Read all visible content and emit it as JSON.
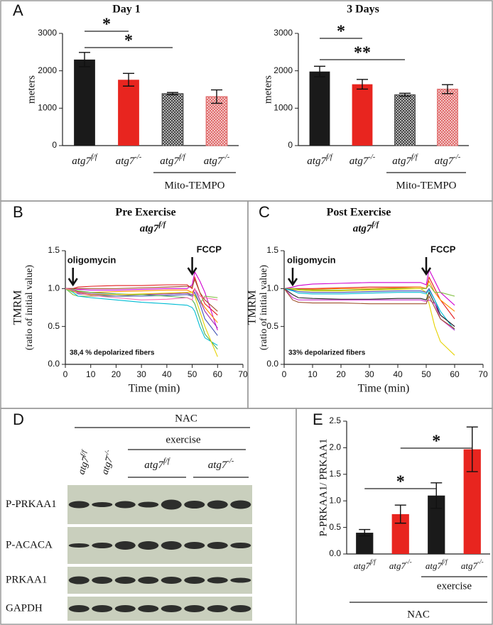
{
  "chart_data": [
    {
      "type": "bar",
      "panel": "A",
      "title": "Day 1",
      "ylabel": "meters",
      "categories": [
        "atg7f/f",
        "atg7-/-",
        "atg7f/f",
        "atg7-/-"
      ],
      "values": [
        2300,
        1760,
        1390,
        1310
      ],
      "errors": [
        190,
        170,
        30,
        180
      ],
      "colors": [
        "#1a1a1a",
        "#e8251f",
        "#444444",
        "#e06a6a"
      ],
      "hatched": [
        false,
        false,
        true,
        true
      ],
      "ylim": [
        0,
        3000
      ],
      "yticks": [
        0,
        1000,
        2000,
        3000
      ],
      "significance": [
        {
          "label": "*",
          "from": 0,
          "to": 1
        },
        {
          "label": "*",
          "from": 0,
          "to": 2
        }
      ],
      "group_labels": [
        {
          "text": "Mito-TEMPO",
          "from": 2,
          "to": 3
        }
      ]
    },
    {
      "type": "bar",
      "title": "3 Days",
      "ylabel": "meters",
      "categories": [
        "atg7f/f",
        "atg7-/-",
        "atg7f/f",
        "atg7-/-"
      ],
      "values": [
        1980,
        1640,
        1360,
        1510
      ],
      "errors": [
        140,
        130,
        40,
        120
      ],
      "colors": [
        "#1a1a1a",
        "#e8251f",
        "#444444",
        "#e06a6a"
      ],
      "hatched": [
        false,
        false,
        true,
        true
      ],
      "ylim": [
        0,
        3000
      ],
      "yticks": [
        0,
        1000,
        2000,
        3000
      ],
      "significance": [
        {
          "label": "*",
          "from": 0,
          "to": 1
        },
        {
          "label": "**",
          "from": 0,
          "to": 2
        }
      ],
      "group_labels": [
        {
          "text": "Mito-TEMPO",
          "from": 2,
          "to": 3
        }
      ]
    },
    {
      "type": "line",
      "panel": "B",
      "title": "Pre Exercise",
      "subtitle": "atg7f/f",
      "ylabel": [
        "TMRM",
        "(ratio of initial value)"
      ],
      "xlabel": "Time (min)",
      "annotation": "38,4 % depolarized fibers",
      "arrows": [
        {
          "label": "oligomycin",
          "x": 3
        },
        {
          "label": "FCCP",
          "x": 50
        }
      ],
      "xlim": [
        0,
        70
      ],
      "xticks": [
        0,
        10,
        20,
        30,
        40,
        50,
        60,
        70
      ],
      "ylim": [
        0,
        1.5
      ],
      "yticks": [
        {
          "value": 0,
          "label": "0.0"
        },
        0.5,
        {
          "value": 1,
          "label": "1.0"
        },
        1.5
      ],
      "x": [
        0,
        3,
        5,
        10,
        20,
        30,
        40,
        48,
        50,
        51,
        53,
        55,
        60
      ],
      "series": [
        {
          "color": "#e31a1c",
          "values": [
            1,
            1.0,
            1.02,
            1.03,
            1.04,
            1.04,
            1.05,
            1.05,
            1.0,
            1.15,
            0.95,
            0.8,
            0.65
          ]
        },
        {
          "color": "#d000d0",
          "values": [
            1,
            1.0,
            0.99,
            0.98,
            0.98,
            0.99,
            1.0,
            1.0,
            1.05,
            1.22,
            1.1,
            0.95,
            0.45
          ]
        },
        {
          "color": "#ff8c00",
          "values": [
            1,
            0.98,
            0.96,
            0.95,
            0.96,
            0.97,
            0.98,
            0.98,
            0.95,
            1.0,
            0.85,
            0.75,
            0.55
          ]
        },
        {
          "color": "#7fbf3f",
          "values": [
            1,
            0.92,
            0.9,
            0.9,
            0.9,
            0.92,
            0.93,
            0.94,
            0.9,
            0.92,
            0.8,
            0.9,
            0.88
          ]
        },
        {
          "color": "#00bcd4",
          "values": [
            1,
            0.95,
            0.9,
            0.88,
            0.85,
            0.82,
            0.8,
            0.78,
            0.75,
            0.7,
            0.5,
            0.35,
            0.25
          ]
        },
        {
          "color": "#3f51b5",
          "values": [
            1,
            0.97,
            0.93,
            0.92,
            0.9,
            0.9,
            0.91,
            0.92,
            0.9,
            0.95,
            0.8,
            0.6,
            0.38
          ]
        },
        {
          "color": "#9c27b0",
          "values": [
            1,
            0.98,
            0.95,
            0.93,
            0.92,
            0.92,
            0.93,
            0.94,
            0.92,
            1.0,
            0.85,
            0.7,
            0.48
          ]
        },
        {
          "color": "#4caf50",
          "values": [
            1,
            0.99,
            0.97,
            0.95,
            0.93,
            0.92,
            0.9,
            0.88,
            0.85,
            0.8,
            0.6,
            0.4,
            0.2
          ]
        },
        {
          "color": "#e6d200",
          "values": [
            1,
            0.96,
            0.94,
            0.92,
            0.92,
            0.93,
            0.94,
            0.95,
            0.95,
            0.9,
            0.7,
            0.5,
            0.1
          ]
        },
        {
          "color": "#a0522d",
          "values": [
            1,
            1.0,
            1.0,
            1.0,
            1.0,
            1.01,
            1.02,
            1.03,
            1.02,
            1.12,
            0.95,
            0.85,
            0.7
          ]
        },
        {
          "color": "#ff69b4",
          "values": [
            1,
            0.98,
            0.94,
            0.91,
            0.88,
            0.85,
            0.86,
            0.88,
            0.85,
            1.0,
            0.9,
            0.88,
            0.85
          ]
        }
      ]
    },
    {
      "type": "line",
      "panel": "C",
      "title": "Post Exercise",
      "subtitle": "atg7f/f",
      "ylabel": [
        "TMRM",
        "(ratio of initial value)"
      ],
      "xlabel": "Time (min)",
      "annotation": "33% depolarized fibers",
      "arrows": [
        {
          "label": "oligomycin",
          "x": 3
        },
        {
          "label": "FCCP",
          "x": 50
        }
      ],
      "xlim": [
        0,
        70
      ],
      "xticks": [
        0,
        10,
        20,
        30,
        40,
        50,
        60,
        70
      ],
      "ylim": [
        0,
        1.5
      ],
      "yticks": [
        {
          "value": 0,
          "label": "0.0"
        },
        0.5,
        {
          "value": 1,
          "label": "1.0"
        },
        1.5
      ],
      "x": [
        0,
        3,
        5,
        10,
        20,
        30,
        40,
        48,
        50,
        51,
        53,
        55,
        60
      ],
      "series": [
        {
          "color": "#d000d0",
          "values": [
            1,
            1.02,
            1.04,
            1.06,
            1.07,
            1.08,
            1.08,
            1.08,
            1.05,
            1.25,
            1.1,
            0.95,
            0.78
          ]
        },
        {
          "color": "#e31a1c",
          "values": [
            1,
            1.0,
            1.0,
            1.0,
            1.01,
            1.02,
            1.02,
            1.02,
            1.0,
            1.15,
            1.0,
            0.85,
            0.6
          ]
        },
        {
          "color": "#ff8c00",
          "values": [
            1,
            1.0,
            0.99,
            0.99,
            1.0,
            1.0,
            1.01,
            1.02,
            1.0,
            1.1,
            0.95,
            0.85,
            0.7
          ]
        },
        {
          "color": "#7fbf3f",
          "values": [
            1,
            1.0,
            0.99,
            0.98,
            0.98,
            0.99,
            1.0,
            1.0,
            1.0,
            1.05,
            0.95,
            0.95,
            0.9
          ]
        },
        {
          "color": "#e6d200",
          "values": [
            1,
            0.99,
            0.98,
            0.97,
            0.97,
            0.98,
            0.99,
            1.0,
            0.95,
            0.8,
            0.5,
            0.3,
            0.12
          ]
        },
        {
          "color": "#3f51b5",
          "values": [
            1,
            0.98,
            0.96,
            0.95,
            0.95,
            0.96,
            0.97,
            0.97,
            0.95,
            1.0,
            0.85,
            0.65,
            0.5
          ]
        },
        {
          "color": "#00bcd4",
          "values": [
            1,
            0.97,
            0.94,
            0.93,
            0.93,
            0.94,
            0.95,
            0.95,
            0.93,
            0.98,
            0.85,
            0.7,
            0.45
          ]
        },
        {
          "color": "#222222",
          "values": [
            1,
            0.92,
            0.88,
            0.87,
            0.86,
            0.86,
            0.87,
            0.87,
            0.85,
            0.95,
            0.8,
            0.65,
            0.5
          ]
        },
        {
          "color": "#cc33cc",
          "values": [
            1,
            0.88,
            0.85,
            0.85,
            0.85,
            0.85,
            0.85,
            0.85,
            0.83,
            0.85,
            0.8,
            0.6,
            0.45
          ]
        },
        {
          "color": "#a0522d",
          "values": [
            1,
            0.85,
            0.82,
            0.81,
            0.81,
            0.8,
            0.8,
            0.8,
            0.8,
            0.9,
            0.75,
            0.6,
            0.47
          ]
        }
      ]
    },
    {
      "type": "bar",
      "panel": "E",
      "ylabel": "P-PRKAA1/ PRKAA1",
      "categories": [
        "atg7f/f",
        "atg7-/-",
        "atg7f/f",
        "atg7-/-"
      ],
      "values": [
        0.4,
        0.75,
        1.1,
        1.97
      ],
      "errors": [
        0.06,
        0.17,
        0.24,
        0.42
      ],
      "colors": [
        "#1a1a1a",
        "#e8251f",
        "#1a1a1a",
        "#e8251f"
      ],
      "hatched": [
        false,
        false,
        false,
        false
      ],
      "ylim": [
        0,
        2.5
      ],
      "yticks": [
        {
          "value": 0,
          "label": "0.0"
        },
        0.5,
        {
          "value": 1,
          "label": "1.0"
        },
        1.5,
        {
          "value": 2,
          "label": "2.0"
        },
        2.5
      ],
      "significance": [
        {
          "label": "*",
          "from": 0,
          "to": 2
        },
        {
          "label": "*",
          "from": 1,
          "to": 3
        }
      ],
      "group_labels": [
        {
          "text": "exercise",
          "from": 2,
          "to": 3
        },
        {
          "text": "NAC",
          "from": 0,
          "to": 3
        }
      ]
    }
  ],
  "blot": {
    "panel": "D",
    "treatment": "NAC",
    "condition": "exercise",
    "lane_labels": [
      "atg7f/f",
      "atg7-/-"
    ],
    "group_labels": [
      "atg7f/f",
      "atg7-/-"
    ],
    "rows": [
      "P-PRKAA1",
      "P-ACACA",
      "PRKAA1",
      "GAPDH"
    ]
  }
}
